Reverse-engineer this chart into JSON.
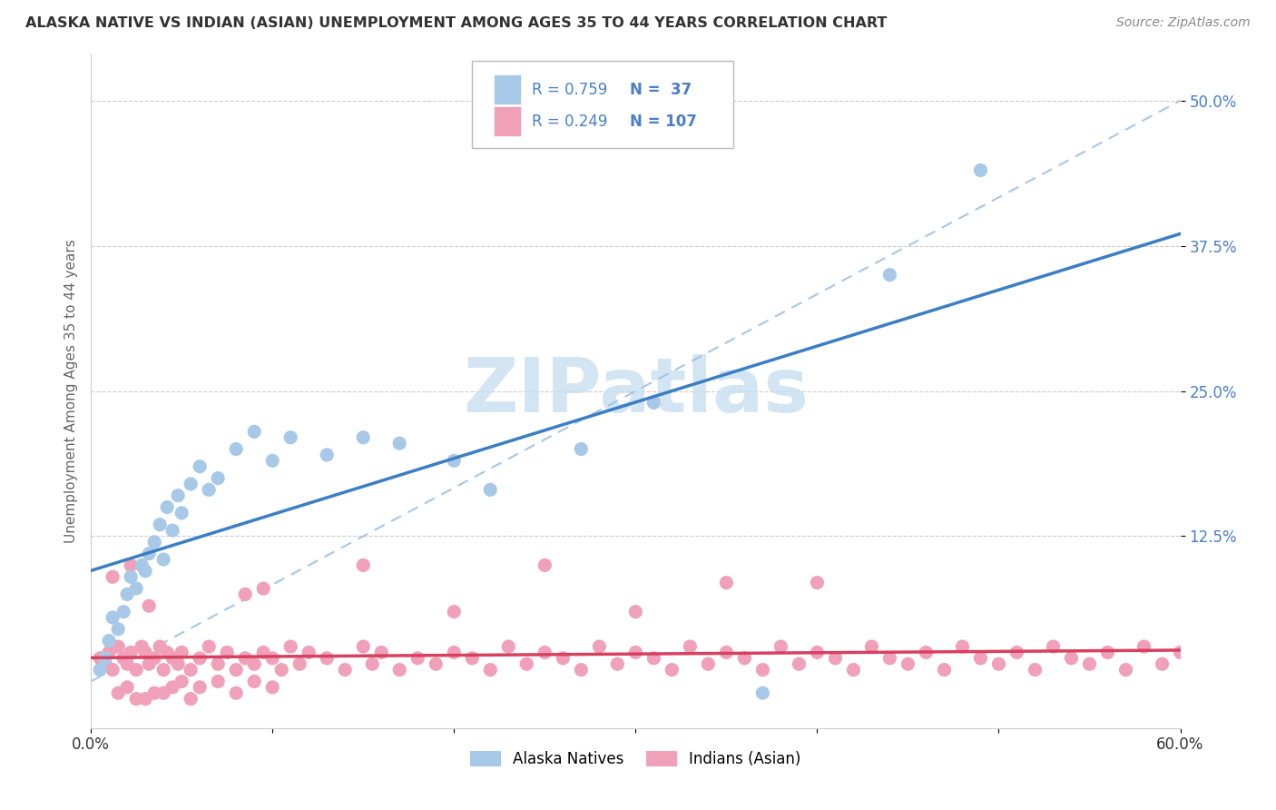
{
  "title": "ALASKA NATIVE VS INDIAN (ASIAN) UNEMPLOYMENT AMONG AGES 35 TO 44 YEARS CORRELATION CHART",
  "source": "Source: ZipAtlas.com",
  "ylabel": "Unemployment Among Ages 35 to 44 years",
  "xlim": [
    0.0,
    0.6
  ],
  "ylim": [
    -0.04,
    0.54
  ],
  "xticks": [
    0.0,
    0.1,
    0.2,
    0.3,
    0.4,
    0.5,
    0.6
  ],
  "xticklabels": [
    "0.0%",
    "",
    "",
    "",
    "",
    "",
    "60.0%"
  ],
  "yticks": [
    0.125,
    0.25,
    0.375,
    0.5
  ],
  "yticklabels": [
    "12.5%",
    "25.0%",
    "37.5%",
    "50.0%"
  ],
  "R_blue": 0.759,
  "N_blue": 37,
  "R_pink": 0.249,
  "N_pink": 107,
  "blue_scatter_color": "#A8C8E8",
  "pink_scatter_color": "#F0A0B8",
  "blue_line_color": "#3A7EC6",
  "pink_line_color": "#D84060",
  "ytick_color": "#4A7EC8",
  "legend_label_blue": "Alaska Natives",
  "legend_label_pink": "Indians (Asian)",
  "background_color": "#FFFFFF",
  "grid_color": "#CCCCCC",
  "watermark_color": "#C8DFF0",
  "alaska_x": [
    0.005,
    0.008,
    0.01,
    0.012,
    0.015,
    0.018,
    0.02,
    0.022,
    0.025,
    0.028,
    0.03,
    0.032,
    0.035,
    0.038,
    0.04,
    0.042,
    0.045,
    0.048,
    0.05,
    0.055,
    0.06,
    0.065,
    0.07,
    0.08,
    0.09,
    0.1,
    0.11,
    0.13,
    0.15,
    0.17,
    0.2,
    0.22,
    0.27,
    0.31,
    0.37,
    0.44,
    0.49
  ],
  "alaska_y": [
    0.01,
    0.02,
    0.035,
    0.055,
    0.045,
    0.06,
    0.075,
    0.09,
    0.08,
    0.1,
    0.095,
    0.11,
    0.12,
    0.135,
    0.105,
    0.15,
    0.13,
    0.16,
    0.145,
    0.17,
    0.185,
    0.165,
    0.175,
    0.2,
    0.215,
    0.19,
    0.21,
    0.195,
    0.21,
    0.205,
    0.19,
    0.165,
    0.2,
    0.24,
    -0.01,
    0.35,
    0.44
  ],
  "indian_x": [
    0.005,
    0.008,
    0.01,
    0.012,
    0.015,
    0.018,
    0.02,
    0.022,
    0.025,
    0.028,
    0.03,
    0.032,
    0.035,
    0.038,
    0.04,
    0.042,
    0.045,
    0.048,
    0.05,
    0.055,
    0.06,
    0.065,
    0.07,
    0.075,
    0.08,
    0.085,
    0.09,
    0.095,
    0.1,
    0.105,
    0.11,
    0.115,
    0.12,
    0.13,
    0.14,
    0.15,
    0.155,
    0.16,
    0.17,
    0.18,
    0.19,
    0.2,
    0.21,
    0.22,
    0.23,
    0.24,
    0.25,
    0.26,
    0.27,
    0.28,
    0.29,
    0.3,
    0.31,
    0.32,
    0.33,
    0.34,
    0.35,
    0.36,
    0.37,
    0.38,
    0.39,
    0.4,
    0.41,
    0.42,
    0.43,
    0.44,
    0.45,
    0.46,
    0.47,
    0.48,
    0.49,
    0.5,
    0.51,
    0.52,
    0.53,
    0.54,
    0.55,
    0.56,
    0.57,
    0.58,
    0.59,
    0.6,
    0.015,
    0.025,
    0.035,
    0.045,
    0.055,
    0.02,
    0.03,
    0.04,
    0.05,
    0.06,
    0.07,
    0.08,
    0.09,
    0.1,
    0.15,
    0.2,
    0.25,
    0.3,
    0.35,
    0.4,
    0.012,
    0.022,
    0.032,
    0.085,
    0.095
  ],
  "indian_y": [
    0.02,
    0.015,
    0.025,
    0.01,
    0.03,
    0.02,
    0.015,
    0.025,
    0.01,
    0.03,
    0.025,
    0.015,
    0.02,
    0.03,
    0.01,
    0.025,
    0.02,
    0.015,
    0.025,
    0.01,
    0.02,
    0.03,
    0.015,
    0.025,
    0.01,
    0.02,
    0.015,
    0.025,
    0.02,
    0.01,
    0.03,
    0.015,
    0.025,
    0.02,
    0.01,
    0.03,
    0.015,
    0.025,
    0.01,
    0.02,
    0.015,
    0.025,
    0.02,
    0.01,
    0.03,
    0.015,
    0.025,
    0.02,
    0.01,
    0.03,
    0.015,
    0.025,
    0.02,
    0.01,
    0.03,
    0.015,
    0.025,
    0.02,
    0.01,
    0.03,
    0.015,
    0.025,
    0.02,
    0.01,
    0.03,
    0.02,
    0.015,
    0.025,
    0.01,
    0.03,
    0.02,
    0.015,
    0.025,
    0.01,
    0.03,
    0.02,
    0.015,
    0.025,
    0.01,
    0.03,
    0.015,
    0.025,
    -0.01,
    -0.015,
    -0.01,
    -0.005,
    -0.015,
    -0.005,
    -0.015,
    -0.01,
    0.0,
    -0.005,
    0.0,
    -0.01,
    0.0,
    -0.005,
    0.1,
    0.06,
    0.1,
    0.06,
    0.085,
    0.085,
    0.09,
    0.1,
    0.065,
    0.075,
    0.08
  ]
}
